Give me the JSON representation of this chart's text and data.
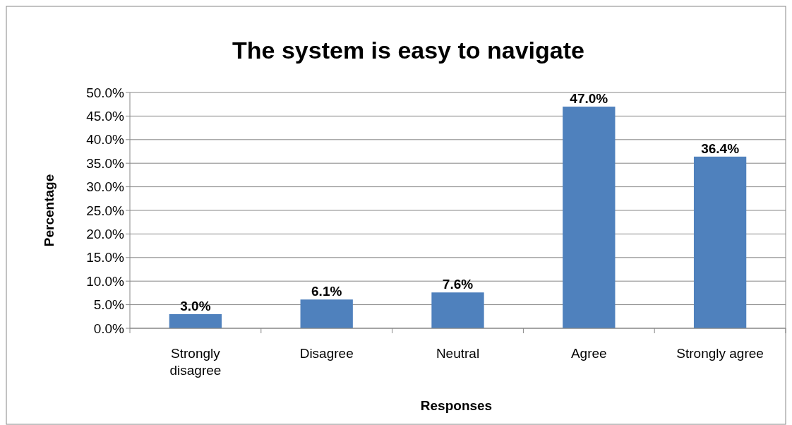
{
  "chart_data": {
    "type": "bar",
    "title": "The system is easy to navigate",
    "xlabel": "Responses",
    "ylabel": "Percentage",
    "categories": [
      "Strongly disagree",
      "Disagree",
      "Neutral",
      "Agree",
      "Strongly agree"
    ],
    "values": [
      3.0,
      6.1,
      7.6,
      47.0,
      36.4
    ],
    "value_labels": [
      "3.0%",
      "6.1%",
      "7.6%",
      "47.0%",
      "36.4%"
    ],
    "color": "#4f81bd",
    "ylim": [
      0,
      50
    ],
    "yticks": [
      {
        "value": 0,
        "label": "0.0%"
      },
      {
        "value": 5,
        "label": "5.0%"
      },
      {
        "value": 10,
        "label": "10.0%"
      },
      {
        "value": 15,
        "label": "15.0%"
      },
      {
        "value": 20,
        "label": "20.0%"
      },
      {
        "value": 25,
        "label": "25.0%"
      },
      {
        "value": 30,
        "label": "30.0%"
      },
      {
        "value": 35,
        "label": "35.0%"
      },
      {
        "value": 40,
        "label": "40.0%"
      },
      {
        "value": 45,
        "label": "45.0%"
      },
      {
        "value": 50,
        "label": "50.0%"
      }
    ],
    "grid": "y"
  }
}
